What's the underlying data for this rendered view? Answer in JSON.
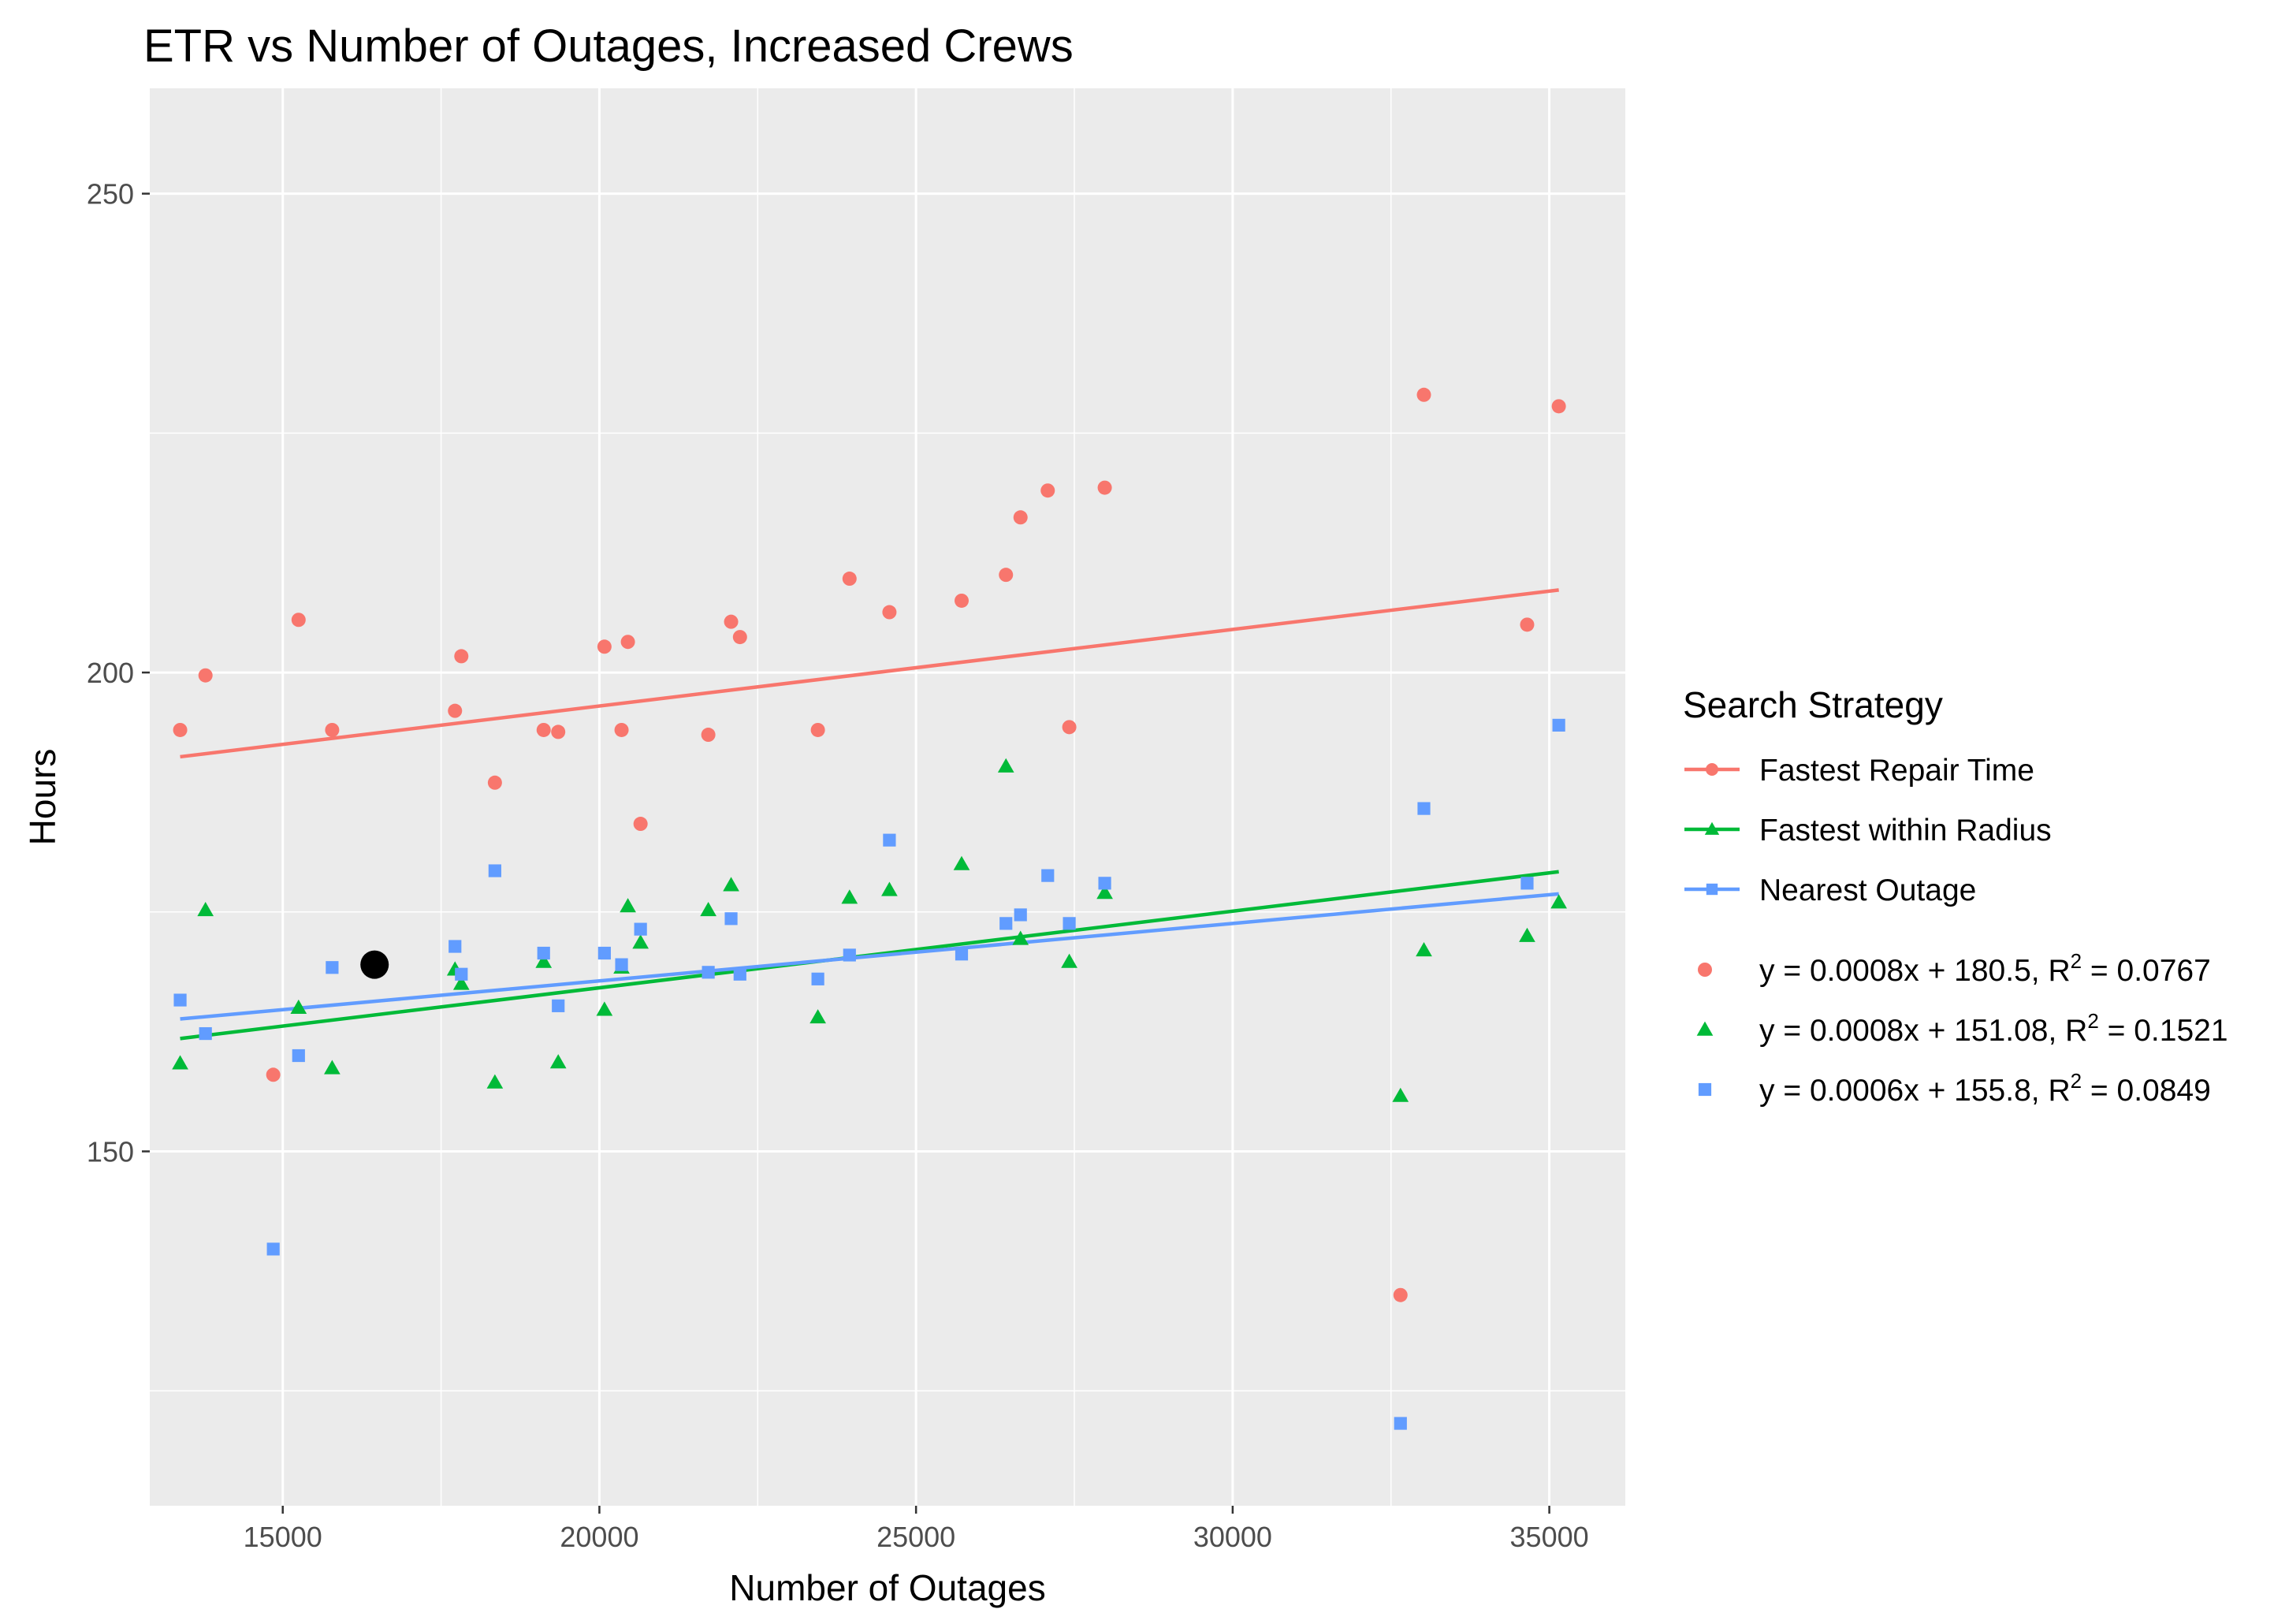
{
  "chart_data": {
    "type": "scatter",
    "title": "ETR vs Number of Outages, Increased Crews",
    "xlabel": "Number of Outages",
    "ylabel": "Hours",
    "xlim": [
      12900,
      36200
    ],
    "ylim": [
      113,
      261
    ],
    "x_ticks": [
      15000,
      20000,
      25000,
      30000,
      35000
    ],
    "y_ticks": [
      150,
      200,
      250
    ],
    "grid": true,
    "legend": {
      "title": "Search Strategy",
      "position": "right"
    },
    "highlight_point": {
      "x": 16450,
      "y": 169.5,
      "color": "#000000"
    },
    "series": [
      {
        "name": "Fastest Repair Time",
        "color": "#F8766D",
        "marker": "circle",
        "fit": {
          "slope": 0.0008,
          "intercept": 180.5,
          "x_range": [
            13380,
            35150
          ]
        },
        "equation": {
          "prefix": "y = 0.0008x + 180.5, R",
          "sup": "2",
          "suffix": " = 0.0767"
        },
        "points": [
          {
            "x": 13380,
            "y": 194
          },
          {
            "x": 13780,
            "y": 199.7
          },
          {
            "x": 14850,
            "y": 158
          },
          {
            "x": 15250,
            "y": 205.5
          },
          {
            "x": 15780,
            "y": 194
          },
          {
            "x": 17720,
            "y": 196
          },
          {
            "x": 17820,
            "y": 201.7
          },
          {
            "x": 18350,
            "y": 188.5
          },
          {
            "x": 19120,
            "y": 194
          },
          {
            "x": 19350,
            "y": 193.8
          },
          {
            "x": 20080,
            "y": 202.7
          },
          {
            "x": 20350,
            "y": 194
          },
          {
            "x": 20450,
            "y": 203.2
          },
          {
            "x": 20650,
            "y": 184.2
          },
          {
            "x": 21720,
            "y": 193.5
          },
          {
            "x": 22080,
            "y": 205.3
          },
          {
            "x": 22220,
            "y": 203.7
          },
          {
            "x": 23450,
            "y": 194
          },
          {
            "x": 23950,
            "y": 209.8
          },
          {
            "x": 24580,
            "y": 206.3
          },
          {
            "x": 25720,
            "y": 207.5
          },
          {
            "x": 26420,
            "y": 210.2
          },
          {
            "x": 26650,
            "y": 216.2
          },
          {
            "x": 27080,
            "y": 219
          },
          {
            "x": 27420,
            "y": 194.3
          },
          {
            "x": 27980,
            "y": 219.3
          },
          {
            "x": 32650,
            "y": 135
          },
          {
            "x": 33020,
            "y": 229
          },
          {
            "x": 34650,
            "y": 205
          },
          {
            "x": 35150,
            "y": 227.8
          }
        ]
      },
      {
        "name": "Fastest within Radius",
        "color": "#00BA38",
        "marker": "triangle",
        "fit": {
          "slope": 0.0008,
          "intercept": 151.08,
          "x_range": [
            13380,
            35150
          ]
        },
        "equation": {
          "prefix": "y = 0.0008x + 151.08, R",
          "sup": "2",
          "suffix": " = 0.1521"
        },
        "points": [
          {
            "x": 13380,
            "y": 159.2
          },
          {
            "x": 13780,
            "y": 175.2
          },
          {
            "x": 15250,
            "y": 165
          },
          {
            "x": 15780,
            "y": 158.7
          },
          {
            "x": 17720,
            "y": 169
          },
          {
            "x": 17820,
            "y": 167.5
          },
          {
            "x": 18350,
            "y": 157.2
          },
          {
            "x": 19120,
            "y": 169.8
          },
          {
            "x": 19350,
            "y": 159.3
          },
          {
            "x": 20080,
            "y": 164.8
          },
          {
            "x": 20350,
            "y": 169.2
          },
          {
            "x": 20450,
            "y": 175.6
          },
          {
            "x": 20650,
            "y": 171.8
          },
          {
            "x": 21720,
            "y": 175.2
          },
          {
            "x": 22080,
            "y": 177.8
          },
          {
            "x": 23450,
            "y": 164
          },
          {
            "x": 23950,
            "y": 176.5
          },
          {
            "x": 24580,
            "y": 177.3
          },
          {
            "x": 25720,
            "y": 180
          },
          {
            "x": 26420,
            "y": 190.2
          },
          {
            "x": 26650,
            "y": 172.2
          },
          {
            "x": 27420,
            "y": 169.8
          },
          {
            "x": 27980,
            "y": 177
          },
          {
            "x": 32650,
            "y": 155.8
          },
          {
            "x": 33020,
            "y": 171
          },
          {
            "x": 34650,
            "y": 172.5
          },
          {
            "x": 35150,
            "y": 176
          }
        ]
      },
      {
        "name": "Nearest Outage",
        "color": "#619CFF",
        "marker": "square",
        "fit": {
          "slope": 0.0006,
          "intercept": 155.8,
          "x_range": [
            13380,
            35150
          ]
        },
        "equation": {
          "prefix": "y = 0.0006x + 155.8, R",
          "sup": "2",
          "suffix": " = 0.0849"
        },
        "points": [
          {
            "x": 13380,
            "y": 165.8
          },
          {
            "x": 13780,
            "y": 162.3
          },
          {
            "x": 14850,
            "y": 139.8
          },
          {
            "x": 15250,
            "y": 160
          },
          {
            "x": 15780,
            "y": 169.2
          },
          {
            "x": 17720,
            "y": 171.4
          },
          {
            "x": 17820,
            "y": 168.5
          },
          {
            "x": 18350,
            "y": 179.3
          },
          {
            "x": 19120,
            "y": 170.7
          },
          {
            "x": 19350,
            "y": 165.2
          },
          {
            "x": 20080,
            "y": 170.7
          },
          {
            "x": 20350,
            "y": 169.5
          },
          {
            "x": 20650,
            "y": 173.2
          },
          {
            "x": 21720,
            "y": 168.7
          },
          {
            "x": 22080,
            "y": 174.3
          },
          {
            "x": 22220,
            "y": 168.5
          },
          {
            "x": 23450,
            "y": 168
          },
          {
            "x": 23950,
            "y": 170.5
          },
          {
            "x": 24580,
            "y": 182.5
          },
          {
            "x": 25720,
            "y": 170.6
          },
          {
            "x": 26420,
            "y": 173.8
          },
          {
            "x": 26650,
            "y": 174.7
          },
          {
            "x": 27080,
            "y": 178.8
          },
          {
            "x": 27420,
            "y": 173.8
          },
          {
            "x": 27980,
            "y": 178
          },
          {
            "x": 32650,
            "y": 121.6
          },
          {
            "x": 33020,
            "y": 185.8
          },
          {
            "x": 34650,
            "y": 178
          },
          {
            "x": 35150,
            "y": 194.5
          }
        ]
      }
    ]
  }
}
